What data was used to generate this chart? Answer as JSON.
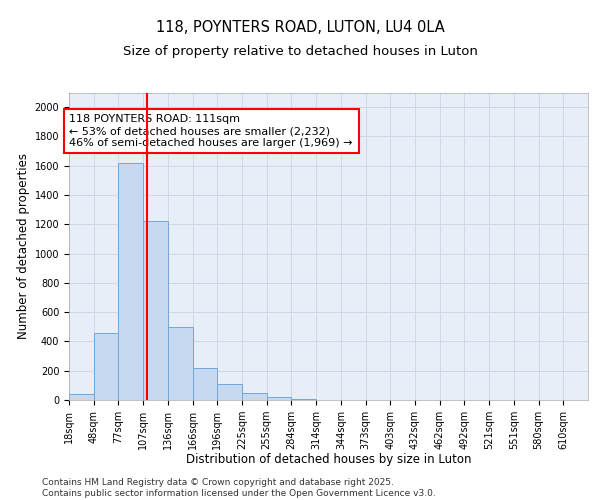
{
  "title_line1": "118, POYNTERS ROAD, LUTON, LU4 0LA",
  "title_line2": "Size of property relative to detached houses in Luton",
  "xlabel": "Distribution of detached houses by size in Luton",
  "ylabel": "Number of detached properties",
  "bar_heights": [
    40,
    460,
    1620,
    1220,
    500,
    220,
    110,
    45,
    20,
    5,
    0,
    0,
    0,
    0,
    0,
    0,
    0,
    0,
    0,
    0,
    0
  ],
  "categories": [
    "18sqm",
    "48sqm",
    "77sqm",
    "107sqm",
    "136sqm",
    "166sqm",
    "196sqm",
    "225sqm",
    "255sqm",
    "284sqm",
    "314sqm",
    "344sqm",
    "373sqm",
    "403sqm",
    "432sqm",
    "462sqm",
    "492sqm",
    "521sqm",
    "551sqm",
    "580sqm",
    "610sqm"
  ],
  "bar_color": "#c6d9f1",
  "bar_edge_color": "#6fa8dc",
  "vline_color": "red",
  "annotation_text": "118 POYNTERS ROAD: 111sqm\n← 53% of detached houses are smaller (2,232)\n46% of semi-detached houses are larger (1,969) →",
  "annotation_box_color": "white",
  "annotation_box_edge_color": "red",
  "ylim": [
    0,
    2100
  ],
  "yticks": [
    0,
    200,
    400,
    600,
    800,
    1000,
    1200,
    1400,
    1600,
    1800,
    2000
  ],
  "grid_color": "#d0d8e8",
  "background_color": "#e8eef8",
  "footer_text": "Contains HM Land Registry data © Crown copyright and database right 2025.\nContains public sector information licensed under the Open Government Licence v3.0.",
  "title_fontsize": 10.5,
  "subtitle_fontsize": 9.5,
  "axis_label_fontsize": 8.5,
  "tick_fontsize": 7,
  "annotation_fontsize": 8,
  "footer_fontsize": 6.5
}
